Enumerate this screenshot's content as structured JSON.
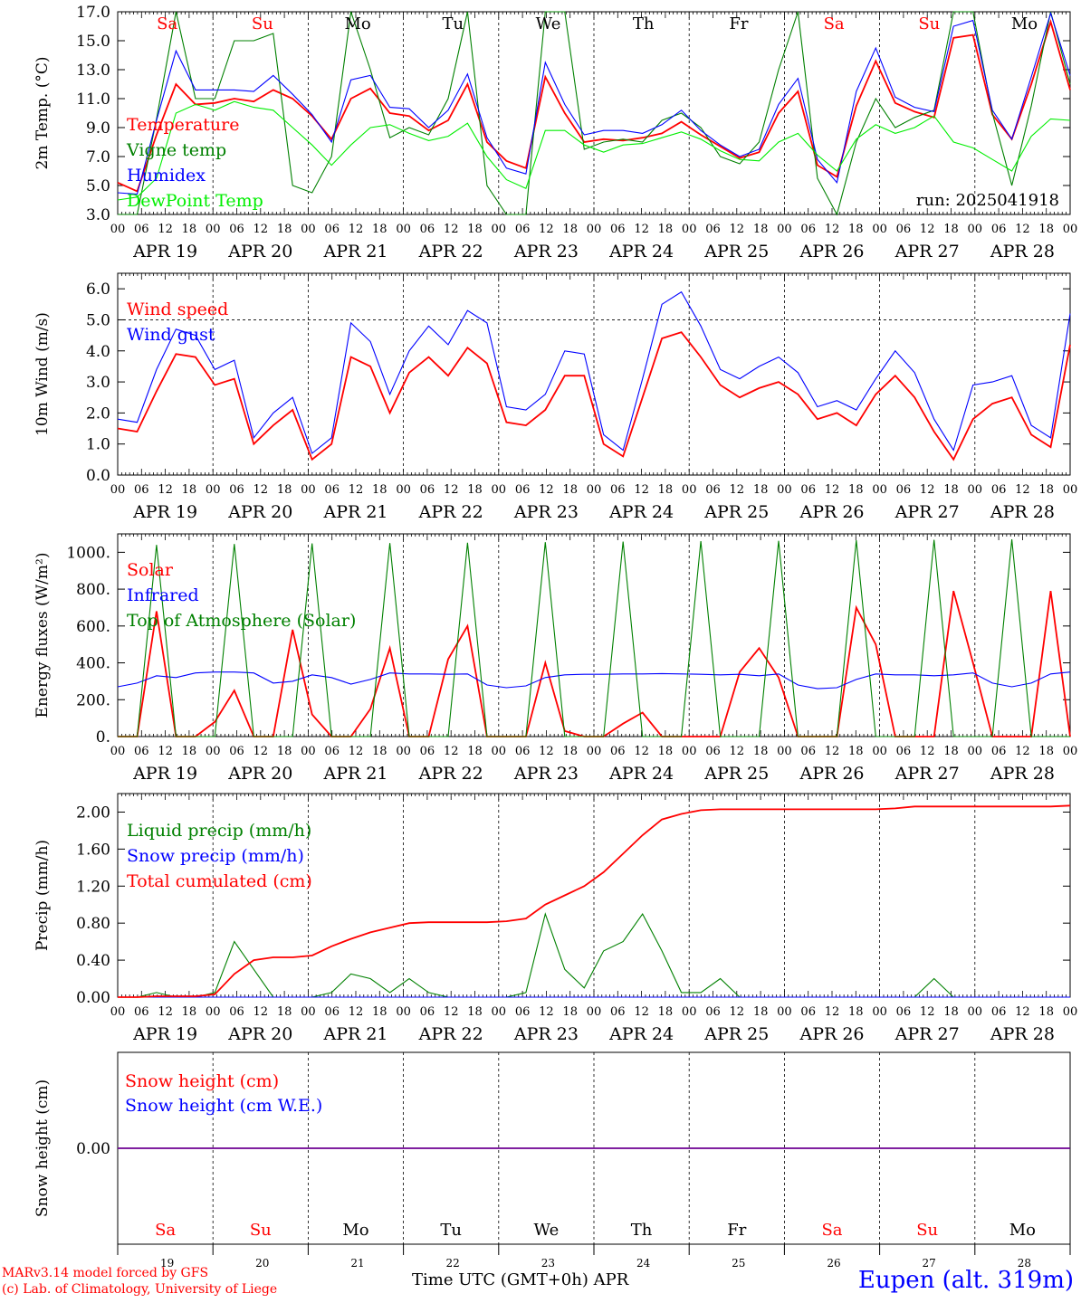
{
  "colors": {
    "red": "#ff0000",
    "green": "#008000",
    "blue": "#0000ff",
    "lightgreen": "#00ee00",
    "black": "#000000"
  },
  "x_axis": {
    "hour_ticks": [
      "00",
      "06",
      "12",
      "18"
    ],
    "date_labels": [
      "APR 19",
      "APR 20",
      "APR 21",
      "APR 22",
      "APR 23",
      "APR 24",
      "APR 25",
      "APR 26",
      "APR 27",
      "APR 28"
    ],
    "day_names": [
      "Sa",
      "Su",
      "Mo",
      "Tu",
      "We",
      "Th",
      "Fr",
      "Sa",
      "Su",
      "Mo"
    ],
    "day_colors": [
      "red",
      "red",
      "black",
      "black",
      "black",
      "black",
      "black",
      "red",
      "red",
      "black"
    ],
    "day_numbers": [
      "19",
      "20",
      "21",
      "22",
      "23",
      "24",
      "25",
      "26",
      "27",
      "28"
    ],
    "axis_title": "Time UTC (GMT+0h)",
    "axis_month": "APR"
  },
  "chart_data": [
    {
      "type": "line",
      "ylabel": "2m Temp. (°C)",
      "ylim": [
        3.0,
        17.0
      ],
      "yticks": [
        "3.0",
        "5.0",
        "7.0",
        "9.0",
        "11.0",
        "13.0",
        "15.0",
        "17.0"
      ],
      "annotation": "run: 2025041918",
      "x_hours_step": 6,
      "series": [
        {
          "name": "Temperature",
          "color": "red",
          "values": [
            5.2,
            4.6,
            8.5,
            12.0,
            10.6,
            10.7,
            11.0,
            10.8,
            11.6,
            11.0,
            9.8,
            8.2,
            11.0,
            11.7,
            10.0,
            9.8,
            8.8,
            9.5,
            12.0,
            8.0,
            6.7,
            6.2,
            12.5,
            10.0,
            8.0,
            8.2,
            8.1,
            8.3,
            8.6,
            9.4,
            8.5,
            7.7,
            6.9,
            7.3,
            10.0,
            11.5,
            6.4,
            5.6,
            10.5,
            13.6,
            10.7,
            10.1,
            9.7,
            15.2,
            15.4,
            9.9,
            8.2,
            12.0,
            16.3,
            11.6
          ]
        },
        {
          "name": "Vigne temp",
          "color": "green",
          "values": [
            3.0,
            3.0,
            9.6,
            17.0,
            11.0,
            11.0,
            15.0,
            15.0,
            15.5,
            5.0,
            4.5,
            7.0,
            17.0,
            13.0,
            8.3,
            9.0,
            8.5,
            11.0,
            17.0,
            5.0,
            3.0,
            3.0,
            17.0,
            17.0,
            7.5,
            8.0,
            8.2,
            8.0,
            9.5,
            10.0,
            9.0,
            7.0,
            6.5,
            8.0,
            13.0,
            17.0,
            5.5,
            3.0,
            8.0,
            11.0,
            9.0,
            9.7,
            10.2,
            17.0,
            17.0,
            10.0,
            5.0,
            10.5,
            17.0,
            12.0
          ]
        },
        {
          "name": "Humidex",
          "color": "blue",
          "values": [
            4.5,
            4.4,
            9.5,
            14.3,
            11.6,
            11.6,
            11.6,
            11.5,
            12.6,
            11.3,
            9.9,
            8.0,
            12.3,
            12.6,
            10.4,
            10.3,
            9.0,
            10.2,
            12.7,
            8.3,
            6.2,
            5.8,
            13.5,
            10.6,
            8.5,
            8.8,
            8.8,
            8.6,
            9.2,
            10.2,
            8.8,
            7.8,
            7.0,
            7.5,
            10.6,
            12.4,
            6.8,
            5.2,
            11.5,
            14.5,
            11.1,
            10.4,
            10.1,
            16.0,
            16.4,
            10.2,
            8.2,
            12.5,
            16.9,
            12.6
          ]
        },
        {
          "name": "DewPoint Temp",
          "color": "lightgreen",
          "values": [
            4.0,
            4.2,
            5.5,
            10.0,
            10.6,
            10.2,
            10.8,
            10.4,
            10.2,
            9.0,
            7.8,
            6.4,
            7.8,
            9.0,
            9.2,
            8.6,
            8.1,
            8.4,
            9.3,
            7.0,
            5.4,
            4.8,
            8.8,
            8.8,
            7.8,
            7.3,
            7.8,
            7.9,
            8.3,
            8.7,
            8.2,
            7.4,
            6.8,
            6.7,
            8.0,
            8.6,
            7.1,
            6.0,
            8.2,
            9.2,
            8.6,
            9.0,
            9.8,
            8.0,
            7.6,
            6.8,
            6.0,
            8.4,
            9.6,
            9.5
          ]
        }
      ],
      "legend": [
        "Temperature",
        "Vigne temp",
        "Humidex",
        "DewPoint Temp"
      ]
    },
    {
      "type": "line",
      "ylabel": "10m Wind (m/s)",
      "ylim": [
        0.0,
        6.5
      ],
      "yticks": [
        "0.0",
        "1.0",
        "2.0",
        "3.0",
        "4.0",
        "5.0",
        "6.0"
      ],
      "reference_line": 5.0,
      "series": [
        {
          "name": "Wind speed",
          "color": "red",
          "values": [
            1.5,
            1.4,
            2.7,
            3.9,
            3.8,
            2.9,
            3.1,
            1.0,
            1.6,
            2.1,
            0.5,
            1.0,
            3.8,
            3.5,
            2.0,
            3.3,
            3.8,
            3.2,
            4.1,
            3.6,
            1.7,
            1.6,
            2.1,
            3.2,
            3.2,
            1.0,
            0.6,
            2.5,
            4.4,
            4.6,
            3.8,
            2.9,
            2.5,
            2.8,
            3.0,
            2.6,
            1.8,
            2.0,
            1.6,
            2.6,
            3.2,
            2.5,
            1.4,
            0.5,
            1.8,
            2.3,
            2.5,
            1.3,
            0.9,
            4.2
          ]
        },
        {
          "name": "Wind gust",
          "color": "blue",
          "values": [
            1.8,
            1.7,
            3.4,
            4.7,
            4.5,
            3.4,
            3.7,
            1.2,
            2.0,
            2.5,
            0.7,
            1.2,
            4.9,
            4.3,
            2.6,
            4.0,
            4.8,
            4.2,
            5.3,
            4.9,
            2.2,
            2.1,
            2.6,
            4.0,
            3.9,
            1.3,
            0.8,
            3.1,
            5.5,
            5.9,
            4.8,
            3.4,
            3.1,
            3.5,
            3.8,
            3.3,
            2.2,
            2.4,
            2.1,
            3.1,
            4.0,
            3.3,
            1.8,
            0.8,
            2.9,
            3.0,
            3.2,
            1.6,
            1.2,
            5.2
          ]
        }
      ],
      "legend": [
        "Wind speed",
        "Wind gust"
      ]
    },
    {
      "type": "line",
      "ylabel": "Energy fluxes (W/m²)",
      "ylim": [
        0,
        1100
      ],
      "yticks": [
        "0.",
        "200.",
        "400.",
        "600.",
        "800.",
        "1000."
      ],
      "series": [
        {
          "name": "Solar",
          "color": "red",
          "values": [
            0,
            0,
            680,
            0,
            0,
            80,
            250,
            0,
            0,
            580,
            120,
            0,
            0,
            150,
            480,
            0,
            0,
            420,
            600,
            0,
            0,
            0,
            400,
            30,
            0,
            0,
            70,
            130,
            0,
            0,
            0,
            0,
            350,
            480,
            320,
            0,
            0,
            0,
            700,
            500,
            0,
            0,
            0,
            790,
            400,
            0,
            0,
            0,
            790,
            0
          ]
        },
        {
          "name": "Infrared",
          "color": "blue",
          "values": [
            270,
            290,
            330,
            320,
            345,
            350,
            350,
            345,
            290,
            300,
            335,
            320,
            285,
            310,
            345,
            340,
            340,
            338,
            340,
            280,
            265,
            275,
            320,
            335,
            338,
            338,
            340,
            340,
            342,
            340,
            338,
            335,
            338,
            330,
            340,
            280,
            260,
            265,
            310,
            340,
            335,
            335,
            330,
            335,
            345,
            290,
            270,
            290,
            340,
            350
          ]
        },
        {
          "name": "Top of Atmosphere (Solar)",
          "color": "green",
          "values": [
            0,
            0,
            1040,
            0,
            0,
            0,
            1045,
            0,
            0,
            0,
            1048,
            0,
            0,
            0,
            1050,
            0,
            0,
            0,
            1052,
            0,
            0,
            0,
            1055,
            0,
            0,
            0,
            1058,
            0,
            0,
            0,
            1060,
            0,
            0,
            0,
            1062,
            0,
            0,
            0,
            1065,
            0,
            0,
            0,
            1068,
            0,
            0,
            0,
            1070,
            0,
            0,
            0
          ]
        }
      ],
      "legend": [
        "Solar",
        "Infrared",
        "Top of Atmosphere (Solar)"
      ]
    },
    {
      "type": "line",
      "ylabel": "Precip (mm/h)",
      "ylim": [
        0.0,
        2.2
      ],
      "yticks": [
        "0.00",
        "0.40",
        "0.80",
        "1.20",
        "1.60",
        "2.00"
      ],
      "series": [
        {
          "name": "Liquid precip (mm/h)",
          "color": "green",
          "values": [
            0,
            0,
            0.05,
            0,
            0,
            0.05,
            0.6,
            0.3,
            0,
            0,
            0,
            0.05,
            0.25,
            0.2,
            0.05,
            0.2,
            0.05,
            0,
            0,
            0,
            0,
            0.05,
            0.9,
            0.3,
            0.1,
            0.5,
            0.6,
            0.9,
            0.5,
            0.05,
            0.05,
            0.2,
            0,
            0,
            0,
            0,
            0,
            0,
            0,
            0,
            0,
            0,
            0.2,
            0,
            0,
            0,
            0,
            0,
            0,
            0
          ]
        },
        {
          "name": "Snow precip (mm/h)",
          "color": "blue",
          "values": [
            0,
            0,
            0,
            0,
            0,
            0,
            0,
            0,
            0,
            0,
            0,
            0,
            0,
            0,
            0,
            0,
            0,
            0,
            0,
            0,
            0,
            0,
            0,
            0,
            0,
            0,
            0,
            0,
            0,
            0,
            0,
            0,
            0,
            0,
            0,
            0,
            0,
            0,
            0,
            0,
            0,
            0,
            0,
            0,
            0,
            0,
            0,
            0,
            0,
            0
          ]
        },
        {
          "name": "Total cumulated (cm)",
          "color": "red",
          "values": [
            0,
            0,
            0.01,
            0.01,
            0.01,
            0.03,
            0.25,
            0.4,
            0.43,
            0.43,
            0.45,
            0.55,
            0.63,
            0.7,
            0.75,
            0.8,
            0.81,
            0.81,
            0.81,
            0.81,
            0.82,
            0.85,
            1.0,
            1.1,
            1.2,
            1.35,
            1.55,
            1.75,
            1.92,
            1.98,
            2.02,
            2.03,
            2.03,
            2.03,
            2.03,
            2.03,
            2.03,
            2.03,
            2.03,
            2.03,
            2.04,
            2.06,
            2.06,
            2.06,
            2.06,
            2.06,
            2.06,
            2.06,
            2.06,
            2.07
          ]
        }
      ],
      "legend": [
        "Liquid precip (mm/h)",
        "Snow precip (mm/h)",
        "Total cumulated (cm)"
      ]
    },
    {
      "type": "line",
      "ylabel": "Snow height (cm)",
      "ylim": [
        -1,
        1
      ],
      "yticks": [
        "0.00"
      ],
      "series": [
        {
          "name": "Snow height (cm)",
          "color": "red",
          "values": [
            0,
            0
          ]
        },
        {
          "name": "Snow height (cm W.E.)",
          "color": "blue",
          "values": [
            0,
            0
          ]
        }
      ],
      "legend": [
        "Snow height (cm)",
        "Snow height (cm W.E.)"
      ]
    }
  ],
  "footer": {
    "model_line": "MARv3.14 model forced by GFS",
    "credit_line": "(c) Lab. of Climatology, University of Liege",
    "station": "Eupen (alt. 319m)"
  }
}
